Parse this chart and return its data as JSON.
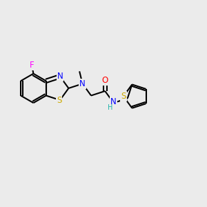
{
  "bg_color": "#ebebeb",
  "line_color": "#000000",
  "bond_width": 1.5,
  "atom_colors": {
    "N": "#0000ff",
    "O": "#ff0000",
    "S": "#ccaa00",
    "F": "#ff00ff",
    "H": "#20b2aa",
    "C": "#000000"
  },
  "font_size": 8.5,
  "BL": 0.72
}
